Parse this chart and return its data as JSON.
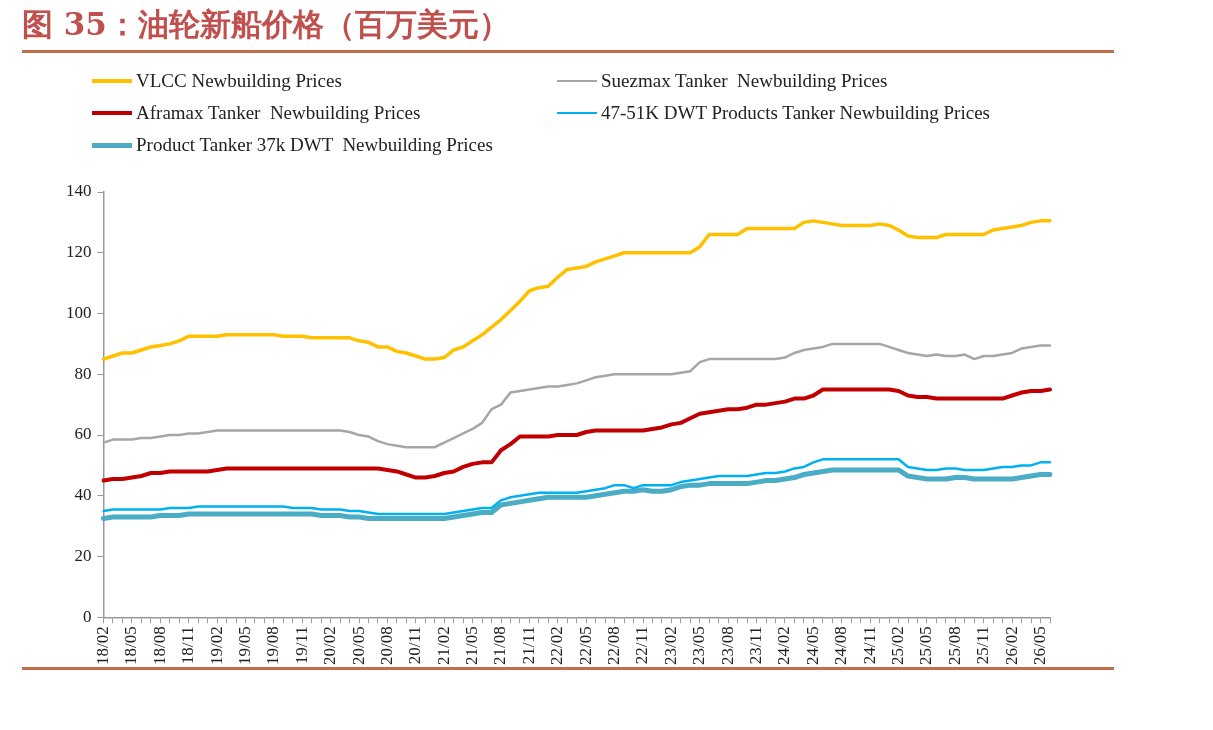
{
  "chart_data": {
    "type": "line",
    "title": "图 35：油轮新船价格（百万美元）",
    "categories": [
      "18/02",
      null,
      null,
      "18/05",
      null,
      null,
      "18/08",
      null,
      null,
      "18/11",
      null,
      null,
      "19/02",
      null,
      null,
      "19/05",
      null,
      null,
      "19/08",
      null,
      null,
      "19/11",
      null,
      null,
      "20/02",
      null,
      null,
      "20/05",
      null,
      null,
      "20/08",
      null,
      null,
      "20/11",
      null,
      null,
      "21/02",
      null,
      null,
      "21/05",
      null,
      null,
      "21/08",
      null,
      null,
      "21/11",
      null,
      null,
      "22/02",
      null,
      null,
      "22/05",
      null,
      null,
      "22/08",
      null,
      null,
      "22/11",
      null,
      null,
      "23/02",
      null,
      null,
      "23/05",
      null,
      null,
      "23/08",
      null,
      null,
      "23/11",
      null,
      null,
      "24/02",
      null,
      null,
      "24/05",
      null,
      null,
      "24/08",
      null,
      null,
      "24/11",
      null,
      null,
      "25/02",
      null,
      null,
      "25/05",
      null,
      null,
      "25/08",
      null,
      null,
      "25/11",
      null,
      null,
      "26/02",
      null,
      null,
      "26/05",
      null
    ],
    "series": [
      {
        "name": "VLCC Newbuilding Prices",
        "color": "#ffc000",
        "values": [
          85,
          86,
          87,
          87,
          88,
          89,
          89.5,
          90,
          91,
          92.5,
          92.5,
          92.5,
          92.5,
          93,
          93,
          93,
          93,
          93,
          93,
          92.5,
          92.5,
          92.5,
          92,
          92,
          92,
          92,
          92,
          91,
          90.5,
          89,
          89,
          87.5,
          87,
          86,
          85,
          85,
          85.5,
          88,
          89,
          91,
          93,
          95.5,
          98,
          101,
          104,
          107.5,
          108.5,
          109,
          112,
          114.5,
          115,
          115.5,
          117,
          118,
          119,
          120,
          120,
          120,
          120,
          120,
          120,
          120,
          120,
          122,
          126,
          126,
          126,
          126,
          128,
          128,
          128,
          128,
          128,
          128,
          130,
          130.5,
          130,
          129.5,
          129,
          129,
          129,
          129,
          129.5,
          129,
          127.5,
          125.5,
          125,
          125,
          125,
          126,
          126,
          126,
          126,
          126,
          127.5,
          128,
          128.5,
          129,
          130,
          130.5,
          130.5
        ]
      },
      {
        "name": "Suezmax Tanker  Newbuilding Prices",
        "color": "#a6a6a6",
        "values": [
          57.5,
          58.5,
          58.5,
          58.5,
          59,
          59,
          59.5,
          60,
          60,
          60.5,
          60.5,
          61,
          61.5,
          61.5,
          61.5,
          61.5,
          61.5,
          61.5,
          61.5,
          61.5,
          61.5,
          61.5,
          61.5,
          61.5,
          61.5,
          61.5,
          61,
          60,
          59.5,
          58,
          57,
          56.5,
          56,
          56,
          56,
          56,
          57.5,
          59,
          60.5,
          62,
          64,
          68.5,
          70,
          74,
          74.5,
          75,
          75.5,
          76,
          76,
          76.5,
          77,
          78,
          79,
          79.5,
          80,
          80,
          80,
          80,
          80,
          80,
          80,
          80.5,
          81,
          84,
          85,
          85,
          85,
          85,
          85,
          85,
          85,
          85,
          85.5,
          87,
          88,
          88.5,
          89,
          90,
          90,
          90,
          90,
          90,
          90,
          89,
          88,
          87,
          86.5,
          86,
          86.5,
          86,
          86,
          86.5,
          85,
          86,
          86,
          86.5,
          87,
          88.5,
          89,
          89.5,
          89.5
        ]
      },
      {
        "name": "Aframax Tanker  Newbuilding Prices",
        "color": "#c00000",
        "values": [
          45,
          45.5,
          45.5,
          46,
          46.5,
          47.5,
          47.5,
          48,
          48,
          48,
          48,
          48,
          48.5,
          49,
          49,
          49,
          49,
          49,
          49,
          49,
          49,
          49,
          49,
          49,
          49,
          49,
          49,
          49,
          49,
          49,
          48.5,
          48,
          47,
          46,
          46,
          46.5,
          47.5,
          48,
          49.5,
          50.5,
          51,
          51,
          55,
          57,
          59.5,
          59.5,
          59.5,
          59.5,
          60,
          60,
          60,
          61,
          61.5,
          61.5,
          61.5,
          61.5,
          61.5,
          61.5,
          62,
          62.5,
          63.5,
          64,
          65.5,
          67,
          67.5,
          68,
          68.5,
          68.5,
          69,
          70,
          70,
          70.5,
          71,
          72,
          72,
          73,
          75,
          75,
          75,
          75,
          75,
          75,
          75,
          75,
          74.5,
          73,
          72.5,
          72.5,
          72,
          72,
          72,
          72,
          72,
          72,
          72,
          72,
          73,
          74,
          74.5,
          74.5,
          75
        ]
      },
      {
        "name": "47-51K DWT Products Tanker Newbuilding Prices",
        "color": "#00b0f0",
        "values": [
          35,
          35.5,
          35.5,
          35.5,
          35.5,
          35.5,
          35.5,
          36,
          36,
          36,
          36.5,
          36.5,
          36.5,
          36.5,
          36.5,
          36.5,
          36.5,
          36.5,
          36.5,
          36.5,
          36,
          36,
          36,
          35.5,
          35.5,
          35.5,
          35,
          35,
          34.5,
          34,
          34,
          34,
          34,
          34,
          34,
          34,
          34,
          34.5,
          35,
          35.5,
          36,
          36,
          38.5,
          39.5,
          40,
          40.5,
          41,
          41,
          41,
          41,
          41,
          41.5,
          42,
          42.5,
          43.5,
          43.5,
          42.5,
          43.5,
          43.5,
          43.5,
          43.5,
          44.5,
          45,
          45.5,
          46,
          46.5,
          46.5,
          46.5,
          46.5,
          47,
          47.5,
          47.5,
          48,
          49,
          49.5,
          51,
          52,
          52,
          52,
          52,
          52,
          52,
          52,
          52,
          52,
          49.5,
          49,
          48.5,
          48.5,
          49,
          49,
          48.5,
          48.5,
          48.5,
          49,
          49.5,
          49.5,
          50,
          50,
          51,
          51
        ]
      },
      {
        "name": "Product Tanker 37k DWT  Newbuilding Prices",
        "color": "#4bacc6",
        "values": [
          32.5,
          33,
          33,
          33,
          33,
          33,
          33.5,
          33.5,
          33.5,
          34,
          34,
          34,
          34,
          34,
          34,
          34,
          34,
          34,
          34,
          34,
          34,
          34,
          34,
          33.5,
          33.5,
          33.5,
          33,
          33,
          32.5,
          32.5,
          32.5,
          32.5,
          32.5,
          32.5,
          32.5,
          32.5,
          32.5,
          33,
          33.5,
          34,
          34.5,
          34.5,
          37,
          37.5,
          38,
          38.5,
          39,
          39.5,
          39.5,
          39.5,
          39.5,
          39.5,
          40,
          40.5,
          41,
          41.5,
          41.5,
          42,
          41.5,
          41.5,
          42,
          43,
          43.5,
          43.5,
          44,
          44,
          44,
          44,
          44,
          44.5,
          45,
          45,
          45.5,
          46,
          47,
          47.5,
          48,
          48.5,
          48.5,
          48.5,
          48.5,
          48.5,
          48.5,
          48.5,
          48.5,
          46.5,
          46,
          45.5,
          45.5,
          45.5,
          46,
          46,
          45.5,
          45.5,
          45.5,
          45.5,
          45.5,
          46,
          46.5,
          47,
          47
        ]
      }
    ],
    "ylim": [
      0,
      140
    ],
    "yticks": [
      0,
      20,
      40,
      60,
      80,
      100,
      120,
      140
    ],
    "grid": false,
    "legend": "top",
    "marker": "none",
    "line_style": "solid"
  }
}
